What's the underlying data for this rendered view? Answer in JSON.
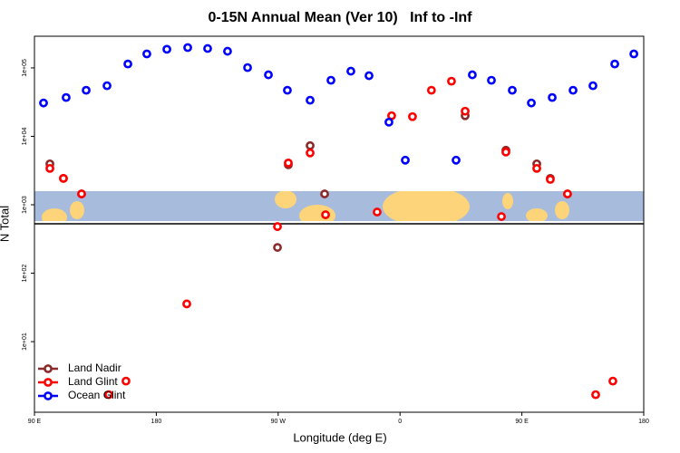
{
  "chart_data": {
    "type": "scatter",
    "title": "0-15N Annual Mean (Ver 10)   Inf to -Inf",
    "x_label": "Longitude (deg E)",
    "y_label": "N Total",
    "xlim": [
      90,
      540
    ],
    "xticks": [
      {
        "value": 90,
        "label": "90 E"
      },
      180,
      {
        "value": 270,
        "label": "90 W"
      },
      {
        "value": 360,
        "label": "0"
      },
      {
        "value": 450,
        "label": "90 E"
      },
      {
        "value": 540,
        "label": "180"
      }
    ],
    "ylim": [
      0.93,
      290000
    ],
    "log_y": true,
    "yticks": [
      {
        "value": 10,
        "label": "1e+01"
      },
      {
        "value": 100,
        "label": "1e+02"
      },
      {
        "value": 1000,
        "label": "1e+03"
      },
      {
        "value": 10000,
        "label": "1e+04"
      },
      {
        "value": 100000,
        "label": "1e+05"
      }
    ],
    "legend": "bottom-left",
    "series": [
      {
        "name": "Land Nadir",
        "color": "#8b2a2a",
        "x": [
          101.4,
          111.4,
          124.8,
          269.5,
          277.5,
          293.6,
          304.3,
          408.1,
          438.2,
          461.0,
          471.0,
          483.7
        ],
        "values": [
          3960,
          2430,
          1440,
          238,
          3840,
          7300,
          1440,
          20000,
          6270,
          3960,
          2430,
          1440
        ]
      },
      {
        "name": "Land Glint",
        "color": "#ff0000",
        "x": [
          101.4,
          111.4,
          124.8,
          144.9,
          157.6,
          202.5,
          269.5,
          277.5,
          293.6,
          305.0,
          343.1,
          353.8,
          369.2,
          383.2,
          398.0,
          408.1,
          434.9,
          438.2,
          461.0,
          471.0,
          483.7,
          504.5,
          517.2
        ],
        "values": [
          3400,
          2430,
          1440,
          1.68,
          2.65,
          35.6,
          480,
          4080,
          5720,
          714,
          783,
          20000,
          19400,
          47100,
          63900,
          23300,
          672,
          5890,
          3400,
          2350,
          1440,
          1.68,
          2.65
        ]
      },
      {
        "name": "Ocean Glint",
        "color": "#0000ff",
        "x": [
          96.7,
          113.4,
          128.2,
          143.6,
          159.0,
          173.0,
          187.8,
          203.2,
          217.9,
          232.6,
          247.4,
          262.8,
          276.8,
          293.6,
          309.0,
          323.7,
          337.1,
          351.8,
          363.9,
          401.4,
          413.4,
          427.5,
          442.9,
          457.0,
          472.4,
          487.8,
          502.5,
          518.6,
          532.7
        ],
        "values": [
          30700,
          36900,
          47100,
          54900,
          114000,
          160000,
          187000,
          198000,
          192000,
          175000,
          101000,
          79200,
          47100,
          33700,
          65900,
          89500,
          76900,
          16100,
          4480,
          4480,
          79200,
          65900,
          47100,
          30700,
          36900,
          47100,
          54900,
          114000,
          160000
        ]
      }
    ]
  }
}
